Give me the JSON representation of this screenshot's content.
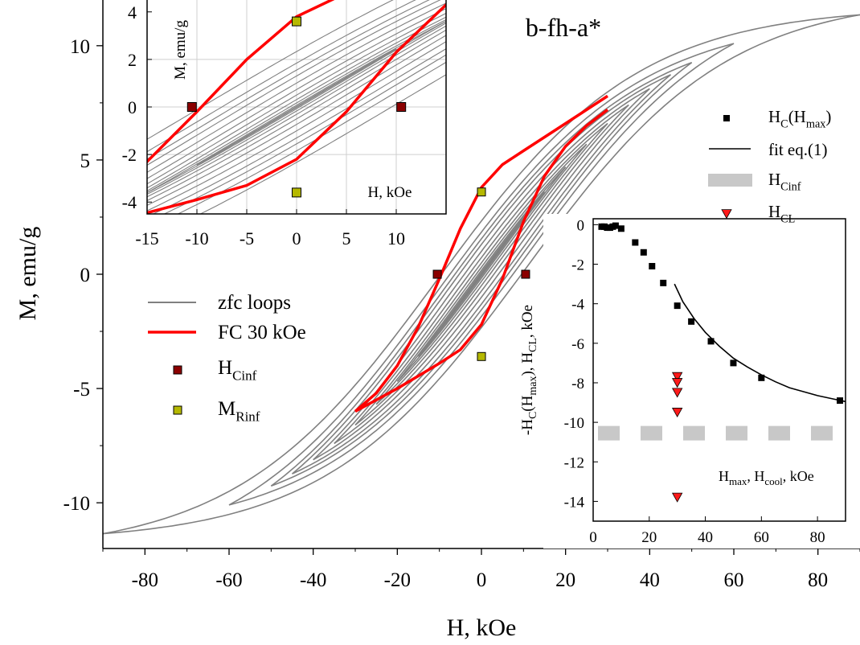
{
  "chart_data": [
    {
      "id": "main",
      "type": "line",
      "title": "b-fh-a*",
      "xlabel": "H, kOe",
      "ylabel": "M, emu/g",
      "xlim": [
        -90,
        90
      ],
      "ylim": [
        -12,
        12
      ],
      "xticks": [
        -80,
        -60,
        -40,
        -20,
        0,
        20,
        40,
        60,
        80
      ],
      "yticks": [
        -10,
        -5,
        0,
        5,
        10
      ],
      "grid": false,
      "legend_position": "center-left",
      "colors": {
        "zfc": "#808080",
        "fc": "#ff0000",
        "hcinf": "#8b0000",
        "mrinf": "#b5b800"
      },
      "legend": [
        {
          "label": "zfc loops",
          "marker": "line"
        },
        {
          "label": "FC 30 kOe",
          "marker": "line"
        },
        {
          "label": "H",
          "sub": "Cinf",
          "marker": "square"
        },
        {
          "label": "M",
          "sub": "Rinf",
          "marker": "square"
        }
      ],
      "zfc_loops_hmax": [
        10,
        15,
        20,
        25,
        30,
        35,
        40,
        45,
        50,
        60,
        90
      ],
      "fc_loop": {
        "hmax": 30,
        "upper": [
          [
            30,
            7.8
          ],
          [
            20,
            6.6
          ],
          [
            10,
            5.4
          ],
          [
            5,
            4.8
          ],
          [
            0,
            3.8
          ],
          [
            -5,
            2.0
          ],
          [
            -10,
            -0.2
          ],
          [
            -15,
            -2.3
          ],
          [
            -20,
            -4.0
          ],
          [
            -25,
            -5.2
          ],
          [
            -30,
            -6.0
          ]
        ],
        "lower": [
          [
            -30,
            -6.0
          ],
          [
            -20,
            -5.0
          ],
          [
            -10,
            -3.9
          ],
          [
            -5,
            -3.3
          ],
          [
            0,
            -2.2
          ],
          [
            5,
            -0.2
          ],
          [
            10,
            2.3
          ],
          [
            15,
            4.3
          ],
          [
            20,
            5.6
          ],
          [
            25,
            6.5
          ],
          [
            30,
            7.2
          ]
        ]
      },
      "H_Cinf": [
        [
          -10.5,
          0
        ],
        [
          10.5,
          0
        ]
      ],
      "M_Rinf": [
        [
          0,
          3.6
        ],
        [
          0,
          -3.6
        ]
      ]
    },
    {
      "id": "inset-top-left",
      "type": "line",
      "xlabel": "H, kOe",
      "ylabel": "M, emu/g",
      "xlim": [
        -15,
        15
      ],
      "ylim": [
        -4.5,
        4.5
      ],
      "xticks": [
        -15,
        -10,
        -5,
        0,
        5,
        10
      ],
      "yticks": [
        -4,
        -2,
        0,
        2,
        4
      ],
      "grid": true,
      "H_Cinf": [
        [
          -10.5,
          0
        ],
        [
          10.5,
          0
        ]
      ],
      "M_Rinf": [
        [
          0,
          3.6
        ],
        [
          0,
          -3.6
        ]
      ]
    },
    {
      "id": "inset-right",
      "type": "scatter",
      "xlabel": "H<sub>max</sub>, H<sub>cool</sub>, kOe",
      "ylabel": "-H_C(H_max), H_CL, kOe",
      "xlim": [
        0,
        90
      ],
      "ylim": [
        -15,
        0.3
      ],
      "xticks": [
        0,
        20,
        40,
        60,
        80
      ],
      "yticks": [
        0,
        -2,
        -4,
        -6,
        -8,
        -10,
        -12,
        -14
      ],
      "grid": false,
      "legend_position": "top-right",
      "legend": [
        {
          "label": "H",
          "sub": "C",
          "suffix": "(H",
          "sub2": "max",
          "suffix2": ")",
          "marker": "square"
        },
        {
          "label": "fit eq.(1)",
          "marker": "line"
        },
        {
          "label": "H",
          "sub": "Cinf",
          "marker": "band"
        },
        {
          "label": "H",
          "sub": "CL",
          "marker": "triangle"
        }
      ],
      "series": [
        {
          "name": "H_C(H_max)",
          "points": [
            [
              3,
              -0.1
            ],
            [
              4,
              -0.1
            ],
            [
              5,
              -0.15
            ],
            [
              6,
              -0.15
            ],
            [
              7,
              -0.1
            ],
            [
              8,
              -0.05
            ],
            [
              10,
              -0.2
            ],
            [
              15,
              -0.9
            ],
            [
              18,
              -1.4
            ],
            [
              21,
              -2.1
            ],
            [
              25,
              -2.95
            ],
            [
              30,
              -4.1
            ],
            [
              35,
              -4.9
            ],
            [
              42,
              -5.9
            ],
            [
              50,
              -7.0
            ],
            [
              60,
              -7.75
            ],
            [
              88,
              -8.9
            ]
          ]
        },
        {
          "name": "fit eq.(1)",
          "points": [
            [
              29,
              -3.0
            ],
            [
              32,
              -3.9
            ],
            [
              36,
              -4.75
            ],
            [
              40,
              -5.45
            ],
            [
              45,
              -6.15
            ],
            [
              50,
              -6.75
            ],
            [
              55,
              -7.2
            ],
            [
              60,
              -7.6
            ],
            [
              65,
              -7.95
            ],
            [
              70,
              -8.25
            ],
            [
              75,
              -8.45
            ],
            [
              80,
              -8.65
            ],
            [
              85,
              -8.8
            ],
            [
              90,
              -8.95
            ]
          ]
        },
        {
          "name": "H_CL",
          "points": [
            [
              30,
              -7.7
            ],
            [
              30,
              -8.0
            ],
            [
              30,
              -8.5
            ],
            [
              30,
              -9.5
            ],
            [
              30,
              -13.8
            ]
          ]
        }
      ],
      "H_Cinf_level": -10.55
    }
  ]
}
